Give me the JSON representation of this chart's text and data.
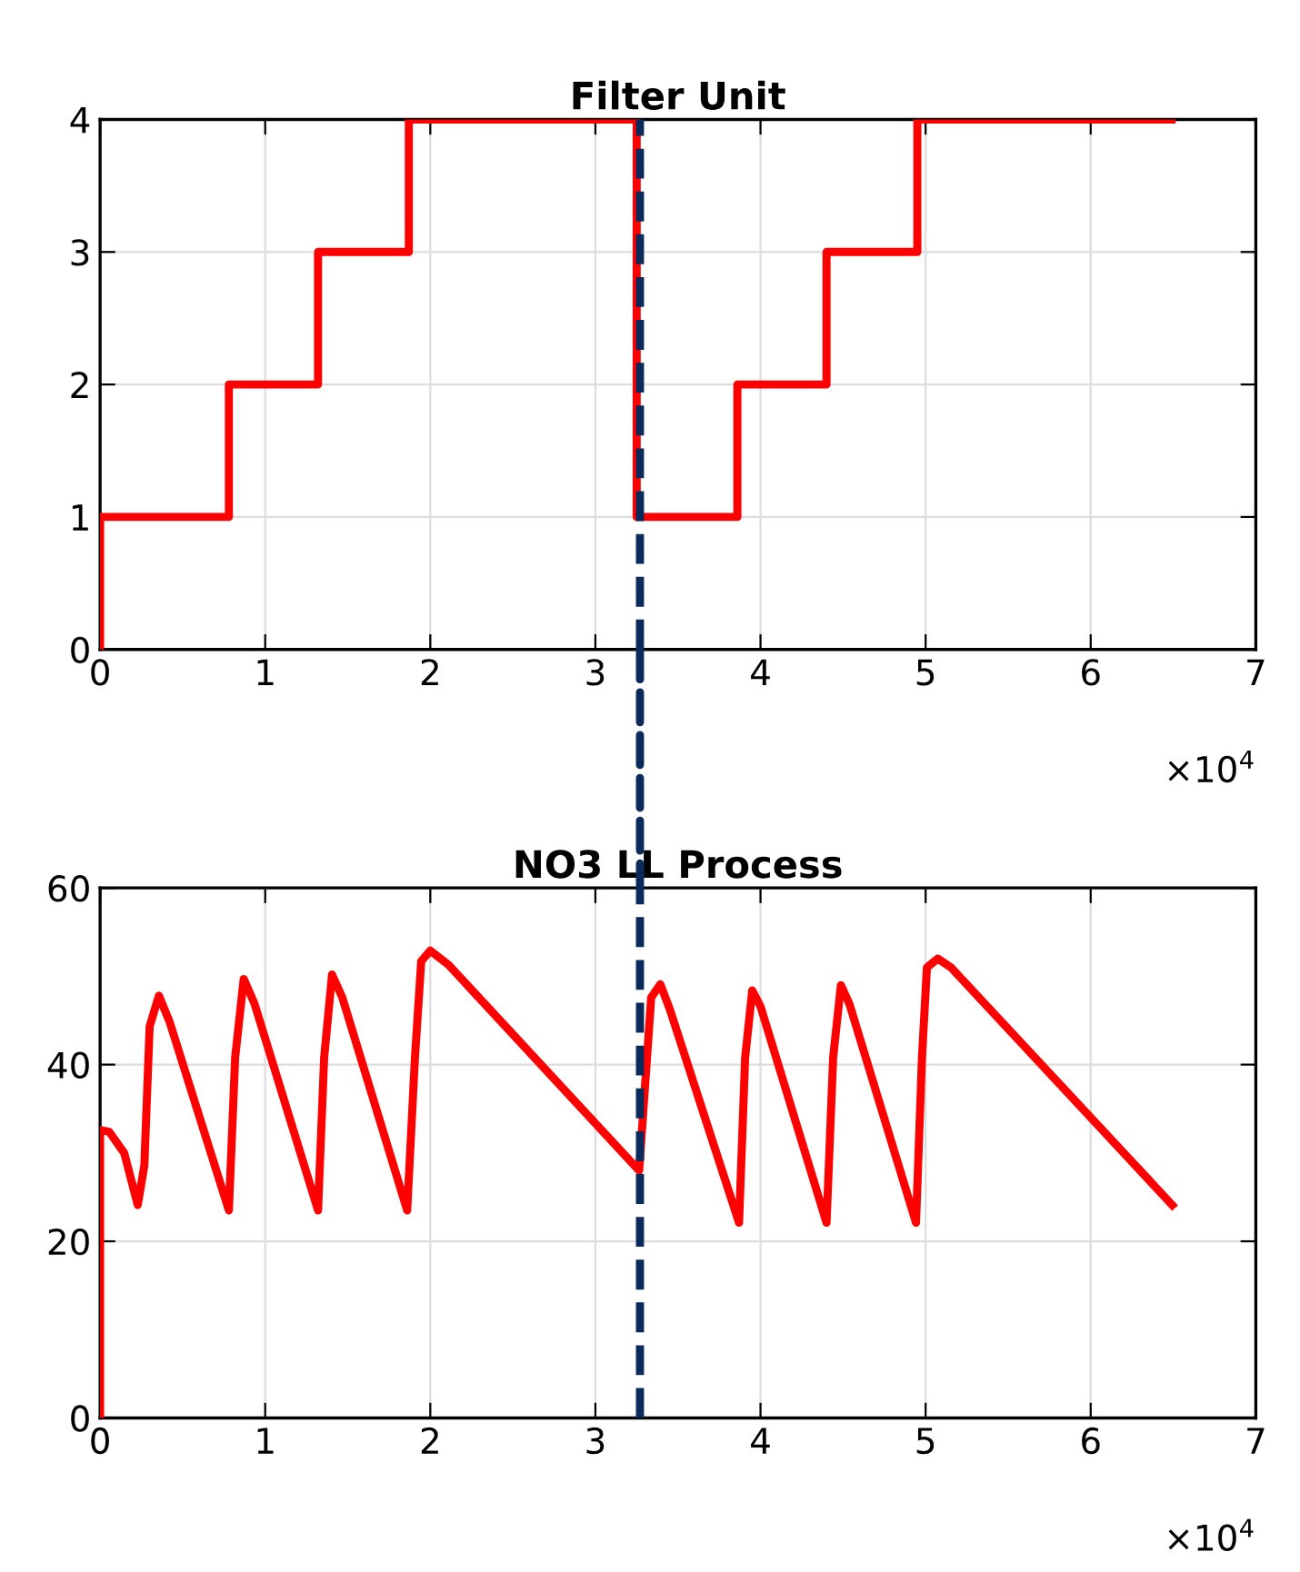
{
  "chart_data": [
    {
      "type": "step",
      "title": "Filter Unit",
      "x": [
        0,
        0,
        0.78,
        1.32,
        1.87,
        3.25,
        3.86,
        4.4,
        4.95,
        6.49
      ],
      "series": [
        {
          "color": "#ff0000",
          "values": [
            0,
            1,
            2,
            3,
            4,
            1,
            2,
            3,
            4,
            4
          ]
        }
      ],
      "xlim": [
        0,
        7
      ],
      "xticks": [
        0,
        1,
        2,
        3,
        4,
        5,
        6,
        7
      ],
      "ylim": [
        0,
        4
      ],
      "yticks": [
        0,
        1,
        2,
        3,
        4
      ],
      "grid": true,
      "line_style": "solid",
      "marker": "none",
      "ref_lines": [
        {
          "axis": "x",
          "value": 3.27,
          "color": "#0b2a5c",
          "line_style": "dashed"
        }
      ],
      "annotations": [
        "×10$^{4}$"
      ]
    },
    {
      "type": "line",
      "title": "NO3 LL Process",
      "x": [
        0,
        0,
        0.055,
        0.146,
        0.228,
        0.268,
        0.3,
        0.356,
        0.42,
        0.78,
        0.818,
        0.87,
        0.935,
        1.32,
        1.357,
        1.405,
        1.467,
        1.86,
        1.907,
        1.945,
        2.0,
        2.11,
        3.265,
        3.3,
        3.338,
        3.393,
        3.45,
        3.87,
        3.907,
        3.95,
        4.0,
        4.4,
        4.44,
        4.487,
        4.538,
        4.942,
        4.978,
        5.008,
        5.074,
        5.154,
        6.494
      ],
      "series": [
        {
          "color": "#ff0000",
          "values": [
            0,
            32.6,
            32.4,
            30.0,
            24.1,
            28.6,
            44.3,
            47.8,
            44.9,
            23.5,
            40.8,
            49.7,
            46.9,
            23.5,
            40.8,
            50.2,
            47.6,
            23.5,
            40.8,
            51.7,
            52.9,
            51.3,
            28.0,
            37.4,
            47.6,
            49.1,
            46.3,
            22.1,
            40.8,
            48.4,
            46.6,
            22.1,
            40.8,
            49.0,
            46.9,
            22.1,
            40.8,
            51.0,
            52.0,
            51.0,
            24.1
          ]
        }
      ],
      "xlim": [
        0,
        7
      ],
      "xticks": [
        0,
        1,
        2,
        3,
        4,
        5,
        6,
        7
      ],
      "ylim": [
        0,
        60
      ],
      "yticks": [
        0,
        20,
        40,
        60
      ],
      "grid": true,
      "line_style": "solid",
      "marker": "none",
      "ref_lines": [
        {
          "axis": "x",
          "value": 3.27,
          "color": "#0b2a5c",
          "line_style": "dashed"
        }
      ],
      "annotations": [
        "×10$^{4}$"
      ]
    }
  ]
}
